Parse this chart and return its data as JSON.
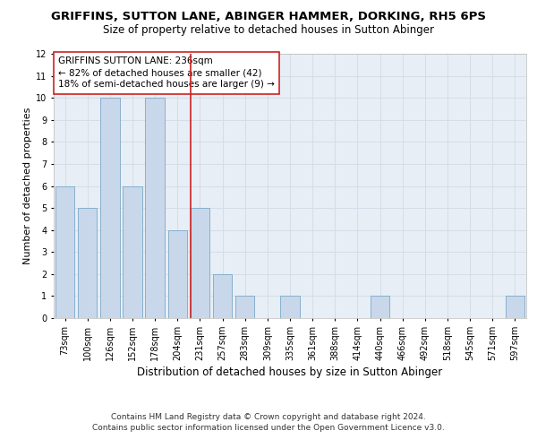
{
  "title": "GRIFFINS, SUTTON LANE, ABINGER HAMMER, DORKING, RH5 6PS",
  "subtitle": "Size of property relative to detached houses in Sutton Abinger",
  "xlabel": "Distribution of detached houses by size in Sutton Abinger",
  "ylabel": "Number of detached properties",
  "categories": [
    "73sqm",
    "100sqm",
    "126sqm",
    "152sqm",
    "178sqm",
    "204sqm",
    "231sqm",
    "257sqm",
    "283sqm",
    "309sqm",
    "335sqm",
    "361sqm",
    "388sqm",
    "414sqm",
    "440sqm",
    "466sqm",
    "492sqm",
    "518sqm",
    "545sqm",
    "571sqm",
    "597sqm"
  ],
  "values": [
    6,
    5,
    10,
    6,
    10,
    4,
    5,
    2,
    1,
    0,
    1,
    0,
    0,
    0,
    1,
    0,
    0,
    0,
    0,
    0,
    1
  ],
  "bar_color": "#c8d8ea",
  "bar_edge_color": "#7aa8c8",
  "grid_color": "#d4dde8",
  "background_color": "#e8eef5",
  "vline_color": "#cc2222",
  "vline_x_index": 6,
  "annotation_text": "GRIFFINS SUTTON LANE: 236sqm\n← 82% of detached houses are smaller (42)\n18% of semi-detached houses are larger (9) →",
  "annotation_box_edge_color": "#cc2222",
  "ylim": [
    0,
    12
  ],
  "yticks": [
    0,
    1,
    2,
    3,
    4,
    5,
    6,
    7,
    8,
    9,
    10,
    11,
    12
  ],
  "footer_line1": "Contains HM Land Registry data © Crown copyright and database right 2024.",
  "footer_line2": "Contains public sector information licensed under the Open Government Licence v3.0.",
  "title_fontsize": 9.5,
  "subtitle_fontsize": 8.5,
  "xlabel_fontsize": 8.5,
  "ylabel_fontsize": 8,
  "tick_fontsize": 7,
  "annotation_fontsize": 7.5,
  "footer_fontsize": 6.5
}
